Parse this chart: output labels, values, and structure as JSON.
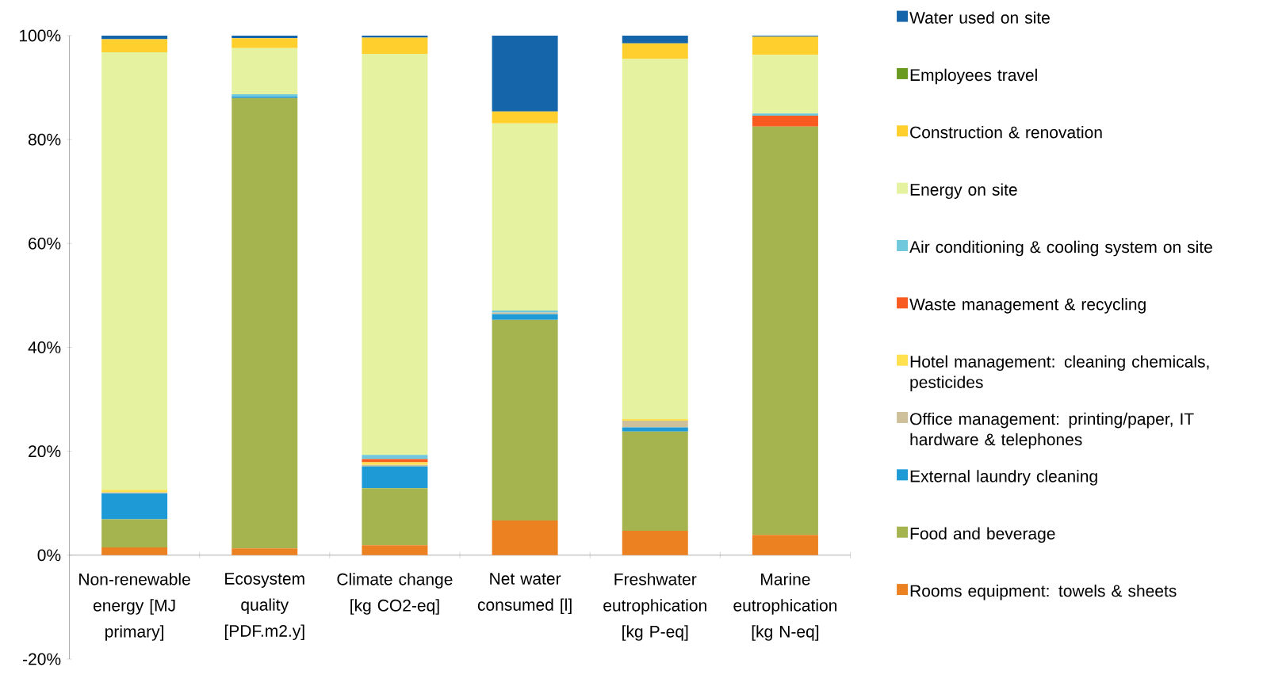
{
  "chart_data": {
    "type": "bar",
    "stacked": true,
    "categories": [
      "Non-renewable energy [MJ primary]",
      "Ecosystem quality [PDF.m2.y]",
      "Climate change [kg CO2-eq]",
      "Net water consumed [l]",
      "Freshwater eutrophication [kg P-eq]",
      "Marine eutrophication [kg N-eq]"
    ],
    "series": [
      {
        "name": "Rooms equipment: towels & sheets",
        "color": "#ec8122",
        "values": [
          1.5,
          1.3,
          1.9,
          6.7,
          4.7,
          3.9
        ]
      },
      {
        "name": "Food and beverage",
        "color": "#a6b450",
        "values": [
          5.4,
          86.7,
          11.0,
          38.6,
          19.1,
          78.6
        ]
      },
      {
        "name": "External laundry cleaning",
        "color": "#1e9ad6",
        "values": [
          5.0,
          0.3,
          4.2,
          1.1,
          0.8,
          0
        ]
      },
      {
        "name": "Office management: printing/paper, IT hardware & telephones",
        "color": "#cdc09a",
        "values": [
          0.2,
          0,
          0.3,
          0.3,
          1.3,
          0
        ]
      },
      {
        "name": "Hotel management: cleaning chemicals, pesticides",
        "color": "#ffe04f",
        "values": [
          0.5,
          0,
          0.5,
          0,
          0.3,
          0
        ]
      },
      {
        "name": "Waste management & recycling",
        "color": "#f85a1f",
        "values": [
          0,
          0,
          0.6,
          0,
          0,
          2.1
        ]
      },
      {
        "name": "Air conditioning & cooling system on site",
        "color": "#6fc8dc",
        "values": [
          0,
          0.4,
          0.8,
          0.4,
          0,
          0.4
        ]
      },
      {
        "name": "Energy on site",
        "color": "#e5f3a0",
        "values": [
          84.2,
          8.9,
          77.2,
          36.0,
          69.3,
          11.3
        ]
      },
      {
        "name": "Construction & renovation",
        "color": "#ffcf2e",
        "values": [
          2.5,
          1.9,
          3.1,
          2.3,
          3.0,
          3.5
        ]
      },
      {
        "name": "Employees travel",
        "color": "#6a9a1f",
        "values": [
          0,
          0,
          0,
          0,
          0,
          0
        ]
      },
      {
        "name": "Water used on site",
        "color": "#1565ab",
        "values": [
          0.7,
          0.5,
          0.4,
          14.6,
          1.5,
          0.2
        ]
      }
    ],
    "ylim": [
      -20,
      100
    ],
    "yticks": [
      {
        "value": -20,
        "label": "-20%"
      },
      {
        "value": 0,
        "label": "0%"
      },
      {
        "value": 20,
        "label": "20%"
      },
      {
        "value": 40,
        "label": "40%"
      },
      {
        "value": 60,
        "label": "60%"
      },
      {
        "value": 80,
        "label": "80%"
      },
      {
        "value": 100,
        "label": "100%"
      }
    ],
    "legend": "right"
  }
}
